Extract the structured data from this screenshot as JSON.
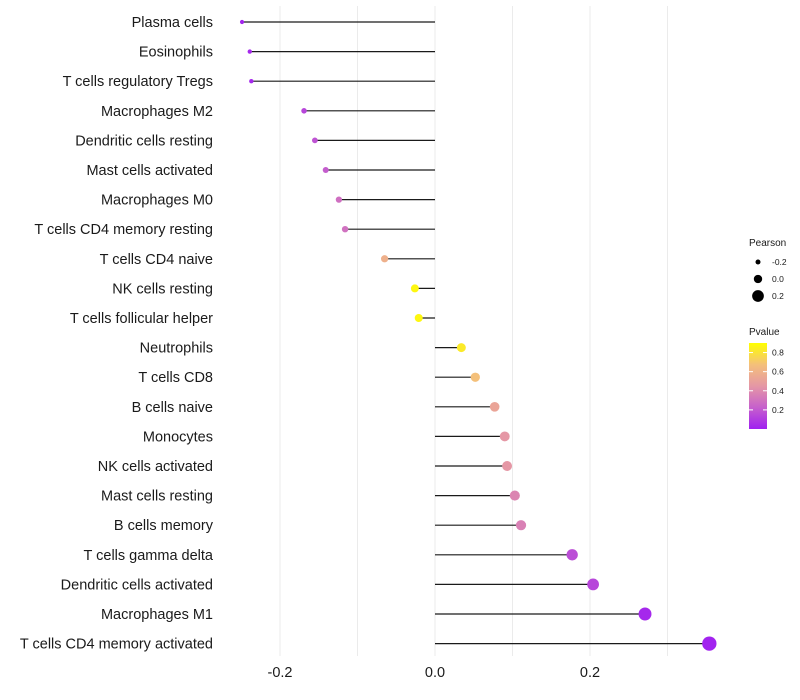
{
  "chart_data": {
    "type": "lollipop",
    "title": "",
    "xlabel": "",
    "ylabel": "",
    "xlim": [
      -0.27,
      0.36
    ],
    "x_ticks": [
      -0.2,
      0.0,
      0.2
    ],
    "x_tick_labels": [
      "-0.2",
      "0.0",
      "0.2"
    ],
    "x_minor_gridlines": [
      -0.1,
      0.1,
      0.3
    ],
    "grid": true,
    "categories": [
      "Plasma cells",
      "Eosinophils",
      "T cells regulatory  Tregs",
      "Macrophages M2",
      "Dendritic cells resting",
      "Mast cells activated",
      "Macrophages M0",
      "T cells CD4 memory resting",
      "T cells CD4 naive",
      "NK cells resting",
      "T cells follicular helper",
      "Neutrophils",
      "T cells CD8",
      "B cells naive",
      "Monocytes",
      "NK cells activated",
      "Mast cells resting",
      "B cells memory",
      "T cells gamma delta",
      "Dendritic cells activated",
      "Macrophages M1",
      "T cells CD4 memory activated"
    ],
    "values": [
      -0.249,
      -0.239,
      -0.237,
      -0.169,
      -0.155,
      -0.141,
      -0.124,
      -0.116,
      -0.065,
      -0.026,
      -0.021,
      0.034,
      0.052,
      0.077,
      0.09,
      0.093,
      0.103,
      0.111,
      0.177,
      0.204,
      0.271,
      0.354
    ],
    "pvalues": [
      0.02,
      0.03,
      0.03,
      0.15,
      0.2,
      0.24,
      0.32,
      0.33,
      0.65,
      0.88,
      0.88,
      0.85,
      0.75,
      0.58,
      0.5,
      0.5,
      0.42,
      0.4,
      0.18,
      0.15,
      0.03,
      0.01
    ],
    "size_legend": {
      "title": "Pearson",
      "values": [
        -0.2,
        0.0,
        0.2
      ],
      "labels": [
        "-0.2",
        "0.0",
        "0.2"
      ]
    },
    "color_legend": {
      "title": "Pvalue",
      "range": [
        0.0,
        0.9
      ],
      "ticks": [
        0.8,
        0.6,
        0.4,
        0.2
      ],
      "labels": [
        "0.8",
        "0.6",
        "0.4",
        "0.2"
      ],
      "low_color": "#a020f0",
      "mid_color": "#e8a090",
      "high_color": "#ffff00"
    },
    "legend_position": "right"
  }
}
